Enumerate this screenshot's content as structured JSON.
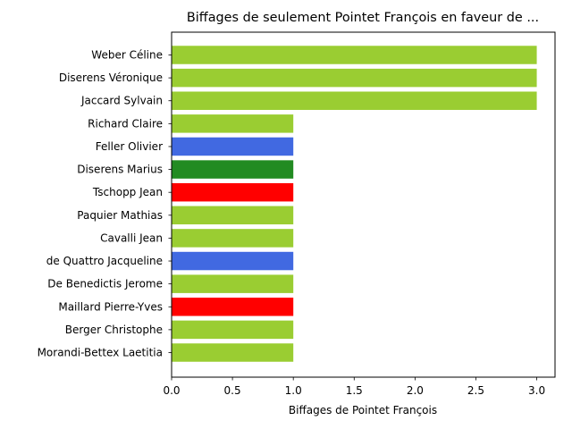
{
  "chart_data": {
    "type": "bar",
    "orientation": "horizontal",
    "title": "Biffages de seulement Pointet François en faveur de ...",
    "xlabel": "Biffages de Pointet François",
    "ylabel": "",
    "xlim": [
      0,
      3.15
    ],
    "xticks": [
      0,
      0.5,
      1,
      1.5,
      2,
      2.5,
      3
    ],
    "xtick_labels": [
      "0.0",
      "0.5",
      "1.0",
      "1.5",
      "2.0",
      "2.5",
      "3.0"
    ],
    "grid": false,
    "bars": [
      {
        "label": "Weber Céline",
        "value": 3,
        "color": "#9acd32"
      },
      {
        "label": "Diserens Véronique",
        "value": 3,
        "color": "#9acd32"
      },
      {
        "label": "Jaccard Sylvain",
        "value": 3,
        "color": "#9acd32"
      },
      {
        "label": "Richard Claire",
        "value": 1,
        "color": "#9acd32"
      },
      {
        "label": "Feller Olivier",
        "value": 1,
        "color": "#4169e1"
      },
      {
        "label": "Diserens Marius",
        "value": 1,
        "color": "#228b22"
      },
      {
        "label": "Tschopp Jean",
        "value": 1,
        "color": "#ff0000"
      },
      {
        "label": "Paquier Mathias",
        "value": 1,
        "color": "#9acd32"
      },
      {
        "label": "Cavalli Jean",
        "value": 1,
        "color": "#9acd32"
      },
      {
        "label": "de Quattro Jacqueline",
        "value": 1,
        "color": "#4169e1"
      },
      {
        "label": "De Benedictis Jerome",
        "value": 1,
        "color": "#9acd32"
      },
      {
        "label": "Maillard Pierre-Yves",
        "value": 1,
        "color": "#ff0000"
      },
      {
        "label": "Berger Christophe",
        "value": 1,
        "color": "#9acd32"
      },
      {
        "label": "Morandi-Bettex Laetitia",
        "value": 1,
        "color": "#9acd32"
      }
    ]
  }
}
